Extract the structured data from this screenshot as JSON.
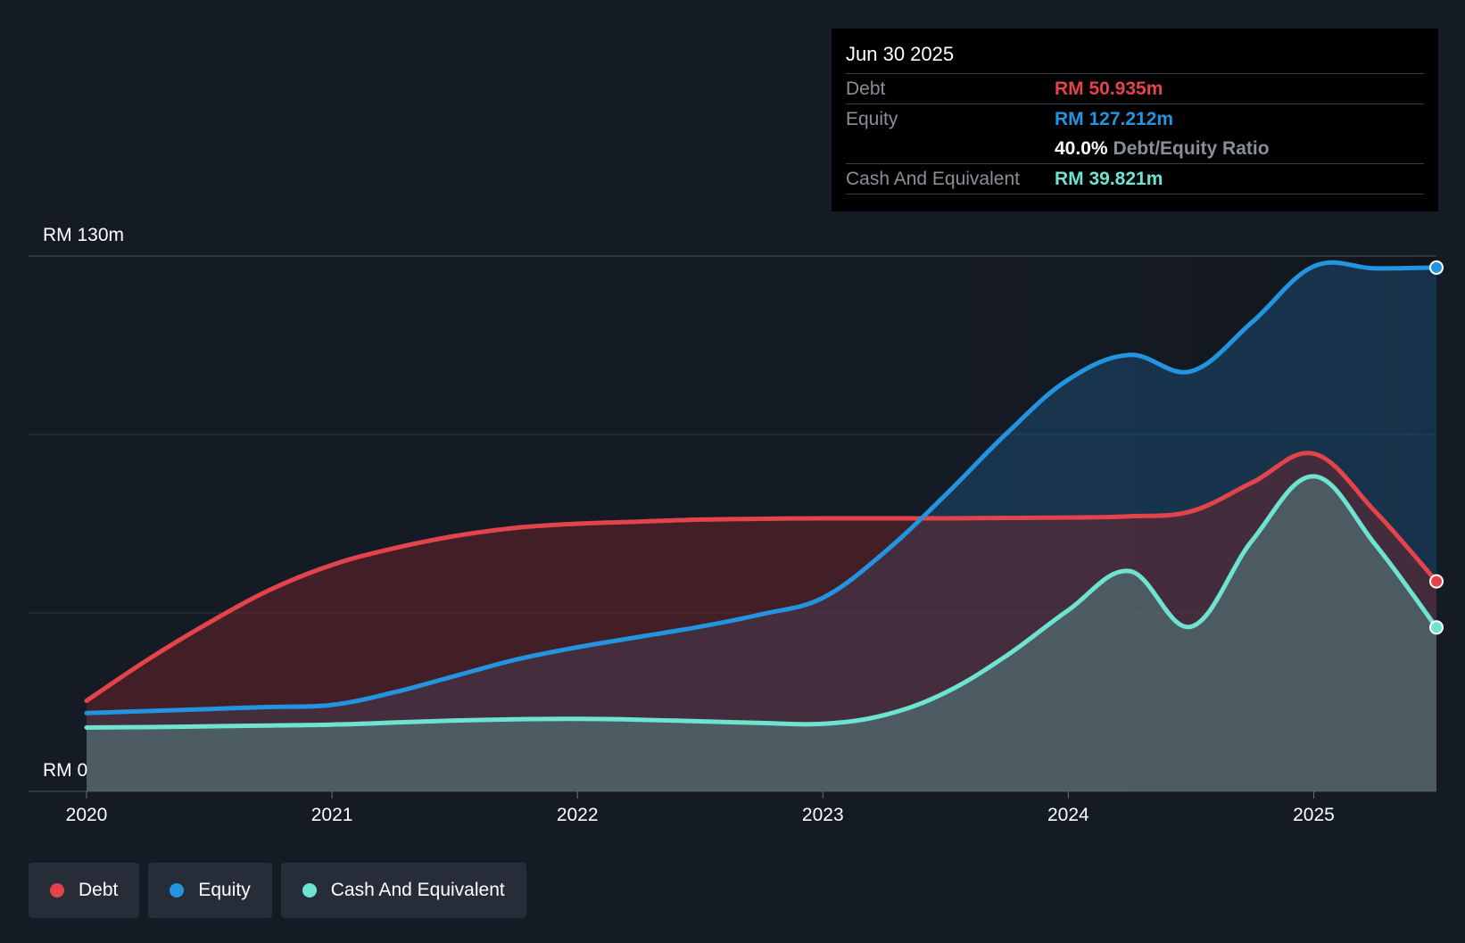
{
  "colors": {
    "background": "#151b24",
    "debt": "#e5434b",
    "equity": "#2394df",
    "cash": "#6de3d0",
    "grid": "#2f3640",
    "text": "#ffffff",
    "muted": "#8a8f96"
  },
  "tooltip": {
    "date": "Jun 30 2025",
    "debt_label": "Debt",
    "debt_value": "RM 50.935m",
    "equity_label": "Equity",
    "equity_value": "RM 127.212m",
    "ratio_value": "40.0%",
    "ratio_label": "Debt/Equity Ratio",
    "cash_label": "Cash And Equivalent",
    "cash_value": "RM 39.821m"
  },
  "legend": {
    "debt": "Debt",
    "equity": "Equity",
    "cash": "Cash And Equivalent"
  },
  "chart_data": {
    "type": "area",
    "title": "",
    "xlabel": "",
    "ylabel": "",
    "x_ticks": [
      "2020",
      "2021",
      "2022",
      "2023",
      "2024",
      "2025"
    ],
    "y_ticks": [
      "RM 0",
      "RM 130m"
    ],
    "xlim": [
      2020.0,
      2025.5
    ],
    "ylim": [
      0,
      130
    ],
    "grid": true,
    "series": [
      {
        "name": "Debt",
        "key": "debt",
        "x": [
          2020.0,
          2020.25,
          2020.5,
          2020.75,
          2021.0,
          2021.25,
          2021.5,
          2021.75,
          2022.0,
          2022.25,
          2022.5,
          2022.75,
          2023.0,
          2023.25,
          2023.5,
          2023.75,
          2024.0,
          2024.25,
          2024.5,
          2024.75,
          2025.0,
          2025.25,
          2025.5
        ],
        "values": [
          22,
          32,
          41,
          49,
          55,
          59,
          62,
          64,
          65,
          65.5,
          66,
          66.2,
          66.3,
          66.3,
          66.3,
          66.4,
          66.5,
          66.8,
          68,
          75,
          82,
          68,
          51
        ]
      },
      {
        "name": "Equity",
        "key": "equity",
        "x": [
          2020.0,
          2020.25,
          2020.5,
          2020.75,
          2021.0,
          2021.25,
          2021.5,
          2021.75,
          2022.0,
          2022.25,
          2022.5,
          2022.75,
          2023.0,
          2023.25,
          2023.5,
          2023.75,
          2024.0,
          2024.25,
          2024.5,
          2024.75,
          2025.0,
          2025.25,
          2025.5
        ],
        "values": [
          19,
          19.5,
          20,
          20.5,
          21,
          24,
          28,
          32,
          35,
          37.5,
          40,
          43,
          47,
          58,
          72,
          87,
          100,
          106,
          102,
          114,
          127.5,
          127,
          127.2
        ]
      },
      {
        "name": "Cash And Equivalent",
        "key": "cash",
        "x": [
          2020.0,
          2020.25,
          2020.5,
          2020.75,
          2021.0,
          2021.25,
          2021.5,
          2021.75,
          2022.0,
          2022.25,
          2022.5,
          2022.75,
          2023.0,
          2023.25,
          2023.5,
          2023.75,
          2024.0,
          2024.25,
          2024.5,
          2024.75,
          2025.0,
          2025.25,
          2025.5
        ],
        "values": [
          15.5,
          15.6,
          15.8,
          16,
          16.2,
          16.7,
          17.2,
          17.5,
          17.6,
          17.4,
          17,
          16.6,
          16.4,
          18.5,
          24,
          33,
          44,
          53.5,
          40,
          61,
          76.5,
          60,
          39.8
        ]
      }
    ]
  }
}
